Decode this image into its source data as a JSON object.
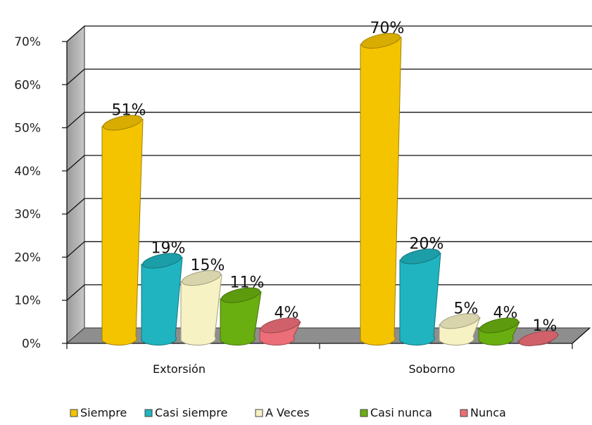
{
  "chart_data": {
    "type": "bar",
    "title": "",
    "xlabel": "",
    "ylabel": "",
    "ylim": [
      0,
      0.7
    ],
    "yticks": [
      "0%",
      "10%",
      "20%",
      "30%",
      "40%",
      "50%",
      "60%",
      "70%"
    ],
    "grid": true,
    "legend_position": "bottom",
    "categories": [
      "Extorsión",
      "Soborno"
    ],
    "series": [
      {
        "name": "Siempre",
        "color": "#f5c400",
        "values": [
          0.51,
          0.7
        ],
        "labels": [
          "51%",
          "70%"
        ]
      },
      {
        "name": "Casi siempre",
        "color": "#20b4c0",
        "values": [
          0.19,
          0.2
        ],
        "labels": [
          "19%",
          "20%"
        ]
      },
      {
        "name": "A Veces",
        "color": "#f6f2c4",
        "values": [
          0.15,
          0.05
        ],
        "labels": [
          "15%",
          "5%"
        ]
      },
      {
        "name": "Casi nunca",
        "color": "#6aaf10",
        "values": [
          0.11,
          0.04
        ],
        "labels": [
          "11%",
          "4%"
        ]
      },
      {
        "name": "Nunca",
        "color": "#ec6e78",
        "values": [
          0.04,
          0.01
        ],
        "labels": [
          "4%",
          "1%"
        ]
      }
    ]
  }
}
